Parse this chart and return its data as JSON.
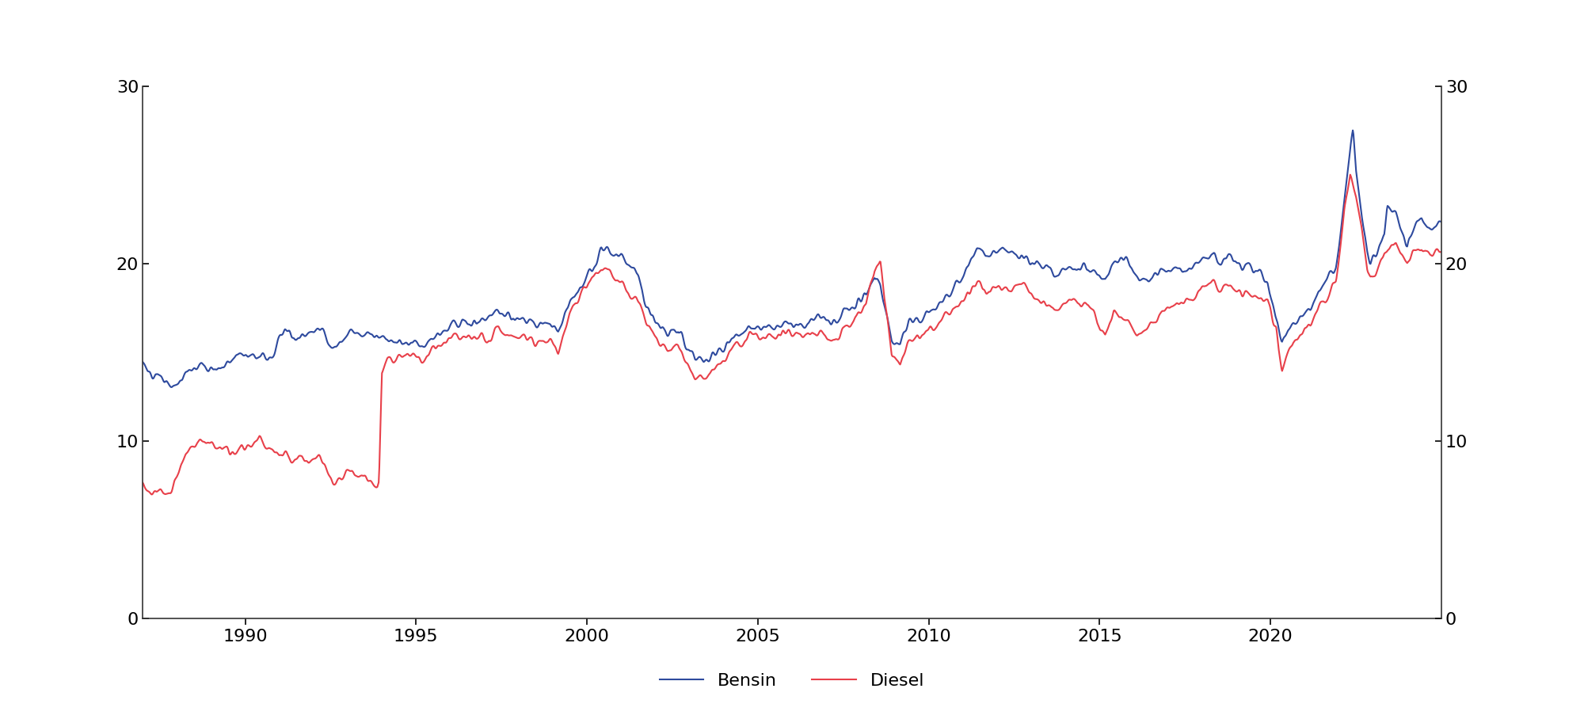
{
  "title": "",
  "bensin_color": "#2E4A9E",
  "diesel_color": "#E8404A",
  "ylim": [
    0,
    30
  ],
  "yticks": [
    0,
    10,
    20,
    30
  ],
  "xlabel": "",
  "ylabel": "",
  "legend_labels": [
    "Bensin",
    "Diesel"
  ],
  "background_color": "#ffffff",
  "line_width": 1.5,
  "figsize": [
    20.0,
    9.08
  ],
  "dpi": 100
}
